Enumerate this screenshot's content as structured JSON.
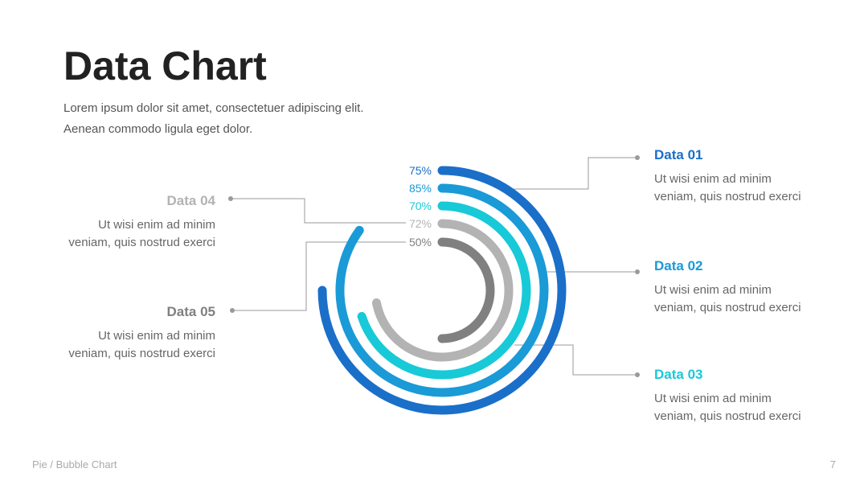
{
  "chart_data": {
    "type": "radial-bar",
    "title": "Data Chart",
    "subtitle": [
      "Lorem ipsum dolor sit amet, consectetuer adipiscing elit.",
      "Aenean commodo ligula eget dolor."
    ],
    "categories": [
      "Data 01",
      "Data 02",
      "Data 03",
      "Data 04",
      "Data 05"
    ],
    "descriptions": [
      [
        "Ut wisi enim ad minim",
        "veniam, quis nostrud exerci"
      ],
      [
        "Ut wisi enim ad minim",
        "veniam, quis nostrud exerci"
      ],
      [
        "Ut wisi enim ad minim",
        "veniam, quis nostrud exerci"
      ],
      [
        "Ut wisi enim ad minim",
        "veniam, quis nostrud exerci"
      ],
      [
        "Ut wisi enim ad minim",
        "veniam, quis nostrud exerci"
      ]
    ],
    "values": [
      75,
      85,
      70,
      72,
      50
    ],
    "value_labels": [
      "75%",
      "85%",
      "70%",
      "72%",
      "50%"
    ],
    "colors": [
      "#1a6fc9",
      "#1a9ad6",
      "#18c9d8",
      "#b3b3b3",
      "#808080"
    ],
    "ylim": [
      0,
      100
    ],
    "footer": "Pie / Bubble Chart",
    "page_number": "7"
  }
}
